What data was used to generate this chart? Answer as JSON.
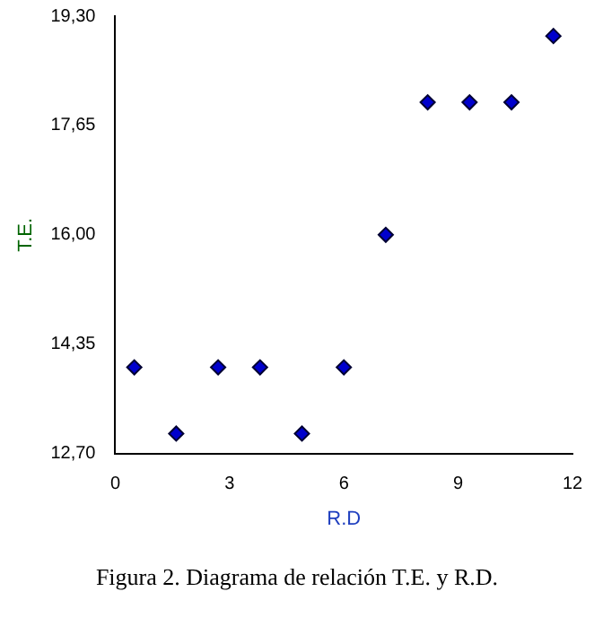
{
  "chart_data": {
    "type": "scatter",
    "xlabel": "R.D",
    "ylabel": "T.E.",
    "x": [
      0.5,
      1.6,
      2.7,
      3.8,
      4.9,
      6.0,
      7.1,
      8.2,
      9.3,
      10.4,
      11.5
    ],
    "values": [
      14.0,
      13.0,
      14.0,
      14.0,
      13.0,
      14.0,
      16.0,
      18.0,
      18.0,
      18.0,
      19.0
    ],
    "color": "#0000cc",
    "marker": "diamond",
    "grid": false,
    "legend": false,
    "xlim": [
      0,
      12
    ],
    "xticks": [
      0,
      3,
      6,
      9,
      12
    ],
    "ylim": [
      12.7,
      19.3
    ],
    "yticks": [
      {
        "value": 12.7,
        "label": "12,70"
      },
      {
        "value": 14.35,
        "label": "14,35"
      },
      {
        "value": 16.0,
        "label": "16,00"
      },
      {
        "value": 17.65,
        "label": "17,65"
      },
      {
        "value": 19.3,
        "label": "19,30"
      }
    ],
    "annotations": [
      "Figura 2. Diagrama de relación T.E. y R.D."
    ]
  }
}
